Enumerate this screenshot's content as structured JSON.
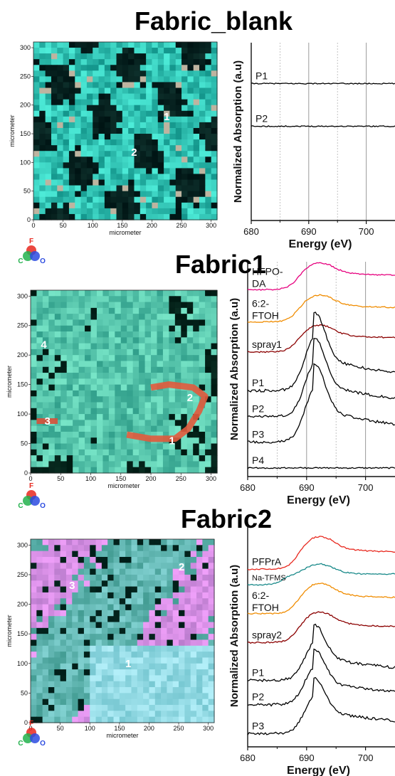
{
  "panels": [
    {
      "title": "Fabric_blank",
      "map": {
        "palette": "teal-black",
        "xlabel": "micrometer",
        "ylabel": "micrometer",
        "xticks": [
          "0",
          "50",
          "100",
          "150",
          "200",
          "250",
          "300"
        ],
        "yticks": [
          "0",
          "50",
          "100",
          "150",
          "200",
          "250",
          "300"
        ],
        "points": [
          {
            "label": "1",
            "x": 225,
            "y": 180
          },
          {
            "label": "2",
            "x": 170,
            "y": 118
          }
        ]
      },
      "legend": {
        "labels": [
          "F",
          "C",
          "O"
        ],
        "colors": [
          "#e8281e",
          "#22b14c",
          "#2c4be0"
        ]
      },
      "chart_data": {
        "type": "line",
        "xlabel": "Energy (eV)",
        "ylabel": "Normalized Absorption (a.u)",
        "xlim": [
          680,
          705
        ],
        "xticks": [
          "680",
          "690",
          "700"
        ],
        "x_minor_gridlines": [
          685,
          695
        ],
        "x_major_gridlines": [
          690,
          700
        ],
        "series": [
          {
            "name": "P1",
            "color": "#000000",
            "offset": 0.77,
            "amp": 0.01,
            "shape": "flat"
          },
          {
            "name": "P2",
            "color": "#000000",
            "offset": 0.53,
            "amp": 0.01,
            "shape": "flat"
          }
        ]
      }
    },
    {
      "title": "Fabric1",
      "map": {
        "palette": "teal-red",
        "xlabel": "micrometer",
        "ylabel": "micrometer",
        "xticks": [
          "0",
          "50",
          "100",
          "150",
          "200",
          "250",
          "300"
        ],
        "yticks": [
          "0",
          "50",
          "100",
          "150",
          "200",
          "250",
          "300"
        ],
        "points": [
          {
            "label": "1",
            "x": 235,
            "y": 55
          },
          {
            "label": "2",
            "x": 265,
            "y": 128
          },
          {
            "label": "3",
            "x": 28,
            "y": 88
          },
          {
            "label": "4",
            "x": 22,
            "y": 218
          }
        ]
      },
      "legend": {
        "labels": [
          "F",
          "C",
          "O"
        ],
        "colors": [
          "#e8281e",
          "#22b14c",
          "#2c4be0"
        ]
      },
      "chart_data": {
        "type": "line",
        "xlabel": "Energy (eV)",
        "ylabel": "Normalized Absorption (a.u)",
        "xlim": [
          680,
          705
        ],
        "xticks": [
          "680",
          "690",
          "700"
        ],
        "x_minor_gridlines": [
          685,
          695
        ],
        "x_major_gridlines": [
          690,
          700
        ],
        "series": [
          {
            "name": "HFPO-DA",
            "color": "#e6007e",
            "offset": 0.87,
            "amp": 0.11,
            "shape": "ptfe"
          },
          {
            "name": "6:2-FTOH",
            "color": "#f08c00",
            "offset": 0.72,
            "amp": 0.11,
            "shape": "ptfe"
          },
          {
            "name": "spray1",
            "color": "#8b0000",
            "offset": 0.58,
            "amp": 0.11,
            "shape": "ptfe"
          },
          {
            "name": "P1",
            "color": "#000000",
            "offset": 0.4,
            "amp": 0.22,
            "shape": "peak"
          },
          {
            "name": "P2",
            "color": "#000000",
            "offset": 0.28,
            "amp": 0.22,
            "shape": "peak"
          },
          {
            "name": "P3",
            "color": "#000000",
            "offset": 0.16,
            "amp": 0.22,
            "shape": "peak"
          },
          {
            "name": "P4",
            "color": "#000000",
            "offset": 0.04,
            "amp": 0.015,
            "shape": "flat"
          }
        ]
      }
    },
    {
      "title": "Fabric2",
      "map": {
        "palette": "purple-teal",
        "xlabel": "micrometer",
        "ylabel": "micrometer",
        "xticks": [
          "0",
          "50",
          "100",
          "150",
          "200",
          "250",
          "300"
        ],
        "yticks": [
          "0",
          "50",
          "100",
          "150",
          "200",
          "250",
          "300"
        ],
        "points": [
          {
            "label": "1",
            "x": 165,
            "y": 100
          },
          {
            "label": "2",
            "x": 255,
            "y": 263
          },
          {
            "label": "3",
            "x": 70,
            "y": 232
          }
        ]
      },
      "legend": {
        "labels": [
          "F",
          "C",
          "O"
        ],
        "colors": [
          "#e8281e",
          "#22b14c",
          "#2c4be0"
        ]
      },
      "chart_data": {
        "type": "line",
        "xlabel": "Energy (eV)",
        "ylabel": "Normalized Absorption (a.u)",
        "xlim": [
          680,
          705
        ],
        "xticks": [
          "680",
          "690",
          "700"
        ],
        "x_minor_gridlines": [],
        "x_major_gridlines": [],
        "series": [
          {
            "name": "PFPrA",
            "color": "#e8281e",
            "offset": 0.8,
            "amp": 0.13,
            "shape": "ptfe"
          },
          {
            "name": "Na-TFMS",
            "color": "#1a8a8a",
            "offset": 0.73,
            "amp": 0.09,
            "shape": "step"
          },
          {
            "name": "6:2-FTOH",
            "color": "#f08c00",
            "offset": 0.6,
            "amp": 0.12,
            "shape": "ptfe"
          },
          {
            "name": "spray2",
            "color": "#8b0000",
            "offset": 0.47,
            "amp": 0.12,
            "shape": "ptfe"
          },
          {
            "name": "P1",
            "color": "#000000",
            "offset": 0.3,
            "amp": 0.15,
            "shape": "peak"
          },
          {
            "name": "P2",
            "color": "#000000",
            "offset": 0.19,
            "amp": 0.15,
            "shape": "peak"
          },
          {
            "name": "P3",
            "color": "#000000",
            "offset": 0.06,
            "amp": 0.15,
            "shape": "peak"
          }
        ]
      }
    }
  ]
}
